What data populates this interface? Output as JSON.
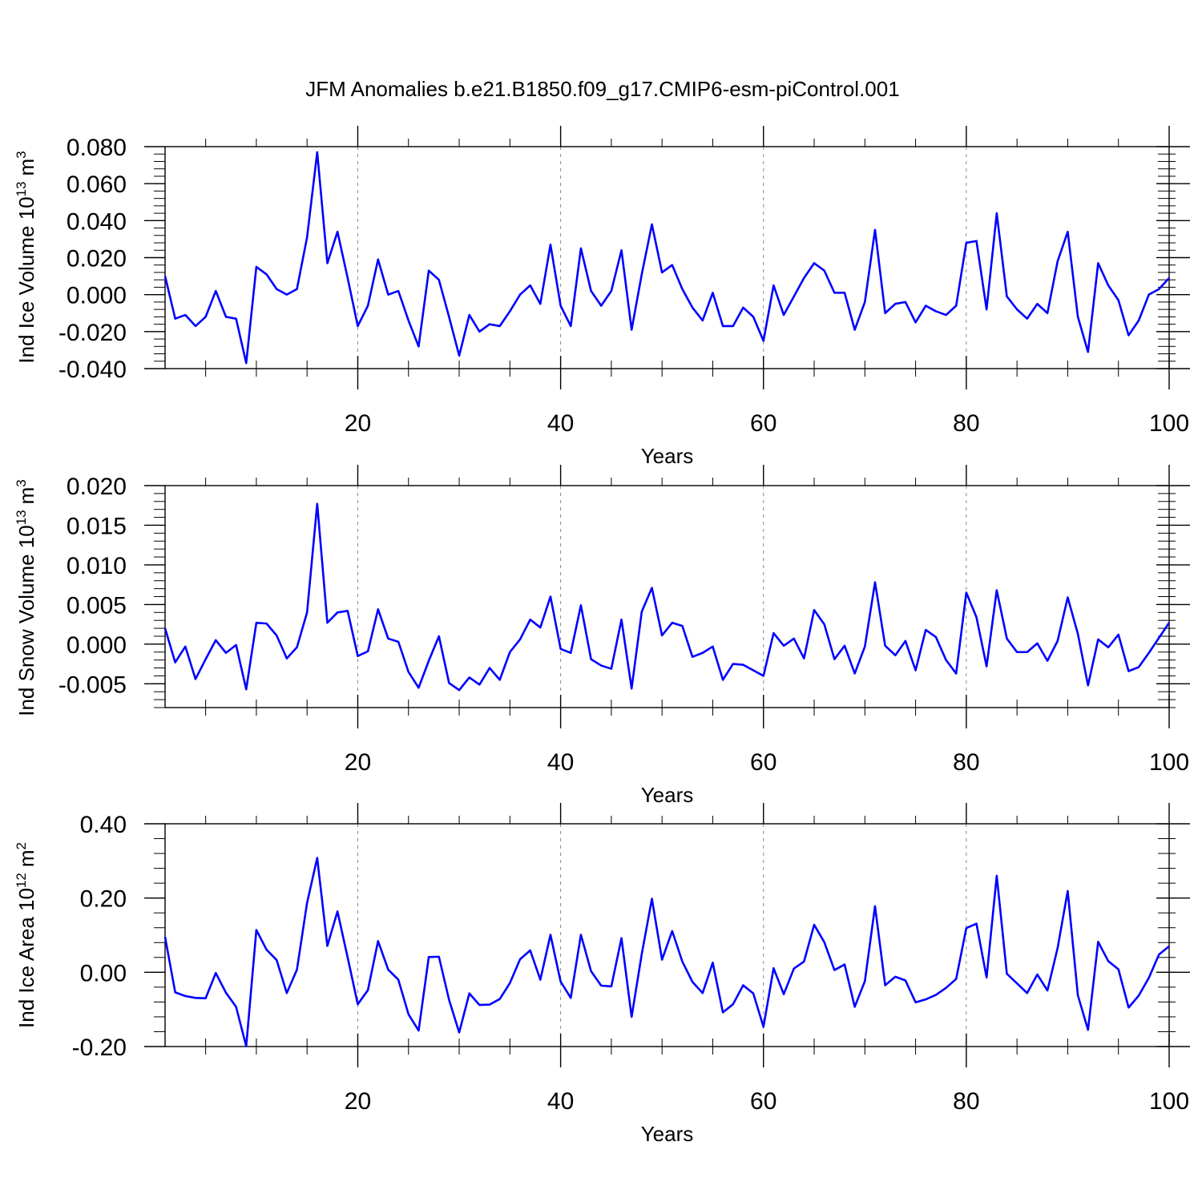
{
  "figure_title": "JFM Anomalies b.e21.B1850.f09_g17.CMIP6-esm-piControl.001",
  "colors": {
    "series": "#0000ff",
    "axis": "#000000",
    "grid": "#888888"
  },
  "chart_data": [
    {
      "type": "line",
      "ylabel_main": "Ind Ice Volume 10",
      "ylabel_exp": "13",
      "ylabel_unit": "m",
      "ylabel_unit_exp": "3",
      "xlabel": "Years",
      "xlim": [
        1,
        100
      ],
      "ylim": [
        -0.04,
        0.08
      ],
      "yticks": [
        -0.04,
        -0.02,
        0.0,
        0.02,
        0.04,
        0.06,
        0.08
      ],
      "ytick_labels": [
        "-0.040",
        "-0.020",
        "0.000",
        "0.020",
        "0.040",
        "0.060",
        "0.080"
      ],
      "xticks": [
        20,
        40,
        60,
        80,
        100
      ],
      "xtick_labels": [
        "20",
        "40",
        "60",
        "80",
        "100"
      ],
      "grid": "vertical dashed at 20, 40, 60, 80",
      "series": [
        {
          "name": "Ind Ice Volume",
          "x_start": 1,
          "values": [
            0.01,
            -0.013,
            -0.011,
            -0.017,
            -0.012,
            0.002,
            -0.012,
            -0.013,
            -0.037,
            0.015,
            0.011,
            0.003,
            0.0,
            0.003,
            0.031,
            0.077,
            0.017,
            0.034,
            0.009,
            -0.017,
            -0.006,
            0.019,
            0.0,
            0.002,
            -0.014,
            -0.028,
            0.013,
            0.008,
            -0.012,
            -0.033,
            -0.011,
            -0.02,
            -0.016,
            -0.017,
            -0.009,
            0.0,
            0.005,
            -0.005,
            0.027,
            -0.006,
            -0.017,
            0.025,
            0.002,
            -0.006,
            0.002,
            0.024,
            -0.019,
            0.011,
            0.038,
            0.012,
            0.016,
            0.003,
            -0.007,
            -0.014,
            0.001,
            -0.017,
            -0.017,
            -0.007,
            -0.012,
            -0.025,
            0.005,
            -0.011,
            -0.001,
            0.009,
            0.017,
            0.013,
            0.001,
            0.001,
            -0.019,
            -0.004,
            0.035,
            -0.01,
            -0.005,
            -0.004,
            -0.015,
            -0.006,
            -0.009,
            -0.011,
            -0.006,
            0.028,
            0.029,
            -0.008,
            0.044,
            -0.001,
            -0.008,
            -0.013,
            -0.005,
            -0.01,
            0.018,
            0.034,
            -0.012,
            -0.031,
            0.017,
            0.005,
            -0.003,
            -0.022,
            -0.014,
            0.0,
            0.003,
            0.009
          ]
        }
      ]
    },
    {
      "type": "line",
      "ylabel_main": "Ind Snow Volume 10",
      "ylabel_exp": "13",
      "ylabel_unit": "m",
      "ylabel_unit_exp": "3",
      "xlabel": "Years",
      "xlim": [
        1,
        100
      ],
      "ylim": [
        -0.008,
        0.02
      ],
      "yticks": [
        -0.005,
        0.0,
        0.005,
        0.01,
        0.015,
        0.02
      ],
      "ytick_labels": [
        "-0.005",
        "0.000",
        "0.005",
        "0.010",
        "0.015",
        "0.020"
      ],
      "xticks": [
        20,
        40,
        60,
        80,
        100
      ],
      "xtick_labels": [
        "20",
        "40",
        "60",
        "80",
        "100"
      ],
      "grid": "vertical dashed at 20, 40, 60, 80",
      "series": [
        {
          "name": "Ind Snow Volume",
          "x_start": 1,
          "values": [
            0.002,
            -0.0023,
            -0.0003,
            -0.0044,
            -0.0019,
            0.0005,
            -0.0011,
            -0.0001,
            -0.0057,
            0.0027,
            0.0026,
            0.0011,
            -0.0018,
            -0.0004,
            0.004,
            0.0177,
            0.0027,
            0.004,
            0.0042,
            -0.0015,
            -0.0009,
            0.0044,
            0.0007,
            0.0003,
            -0.0035,
            -0.0055,
            -0.0021,
            0.001,
            -0.0049,
            -0.0058,
            -0.0042,
            -0.0051,
            -0.003,
            -0.0045,
            -0.001,
            0.0006,
            0.0031,
            0.0021,
            0.006,
            -0.0006,
            -0.0011,
            0.0049,
            -0.0019,
            -0.0027,
            -0.0031,
            0.0031,
            -0.0056,
            0.0041,
            0.0071,
            0.0011,
            0.0027,
            0.0023,
            -0.0016,
            -0.0011,
            -0.0003,
            -0.0045,
            -0.0025,
            -0.0026,
            -0.0033,
            -0.004,
            0.0014,
            -0.0002,
            0.0007,
            -0.0018,
            0.0043,
            0.0025,
            -0.0019,
            -0.0002,
            -0.0037,
            -0.0003,
            0.0078,
            -0.0002,
            -0.0014,
            0.0004,
            -0.0033,
            0.0018,
            0.0009,
            -0.002,
            -0.0037,
            0.0065,
            0.0034,
            -0.0028,
            0.0068,
            0.0007,
            -0.001,
            -0.001,
            0.0001,
            -0.0021,
            0.0004,
            0.0059,
            0.0013,
            -0.0052,
            0.0006,
            -0.0004,
            0.0012,
            -0.0034,
            -0.0029,
            -0.0011,
            0.0008,
            0.0027
          ]
        }
      ]
    },
    {
      "type": "line",
      "ylabel_main": "Ind Ice Area 10",
      "ylabel_exp": "12",
      "ylabel_unit": "m",
      "ylabel_unit_exp": "2",
      "xlabel": "Years",
      "xlim": [
        1,
        100
      ],
      "ylim": [
        -0.2,
        0.4
      ],
      "yticks": [
        -0.2,
        0.0,
        0.2,
        0.4
      ],
      "ytick_labels": [
        "-0.20",
        "0.00",
        "0.20",
        "0.40"
      ],
      "xticks": [
        20,
        40,
        60,
        80,
        100
      ],
      "xtick_labels": [
        "20",
        "40",
        "60",
        "80",
        "100"
      ],
      "grid": "vertical dashed at 20, 40, 60, 80",
      "series": [
        {
          "name": "Ind Ice Area",
          "x_start": 1,
          "values": [
            0.095,
            -0.054,
            -0.064,
            -0.069,
            -0.07,
            -0.002,
            -0.055,
            -0.093,
            -0.199,
            0.114,
            0.061,
            0.033,
            -0.056,
            0.007,
            0.187,
            0.308,
            0.071,
            0.164,
            0.04,
            -0.086,
            -0.048,
            0.084,
            0.007,
            -0.02,
            -0.113,
            -0.157,
            0.041,
            0.042,
            -0.074,
            -0.162,
            -0.057,
            -0.088,
            -0.087,
            -0.072,
            -0.029,
            0.035,
            0.059,
            -0.02,
            0.101,
            -0.025,
            -0.069,
            0.101,
            0.003,
            -0.036,
            -0.038,
            0.092,
            -0.12,
            0.049,
            0.198,
            0.034,
            0.111,
            0.029,
            -0.026,
            -0.056,
            0.026,
            -0.108,
            -0.086,
            -0.035,
            -0.057,
            -0.147,
            0.011,
            -0.059,
            0.01,
            0.029,
            0.128,
            0.081,
            0.006,
            0.021,
            -0.093,
            -0.024,
            0.178,
            -0.035,
            -0.012,
            -0.022,
            -0.081,
            -0.073,
            -0.061,
            -0.042,
            -0.018,
            0.119,
            0.131,
            -0.014,
            0.26,
            -0.004,
            -0.03,
            -0.056,
            -0.006,
            -0.049,
            0.065,
            0.219,
            -0.062,
            -0.155,
            0.082,
            0.03,
            0.008,
            -0.095,
            -0.063,
            -0.015,
            0.048,
            0.07
          ]
        }
      ]
    }
  ]
}
